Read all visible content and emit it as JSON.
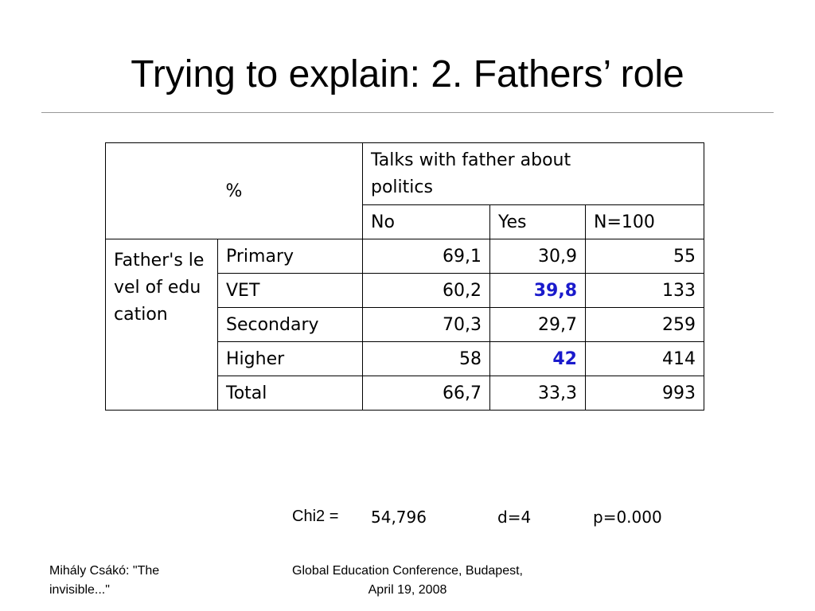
{
  "title": "Trying to explain: 2. Fathers’ role",
  "table": {
    "corner": "%",
    "header": "Talks with father about politics",
    "subheaders": [
      "No",
      "Yes",
      "N=100"
    ],
    "group_label": "Father's level of education",
    "rows": [
      {
        "label": "Primary",
        "no": "69,1",
        "yes": "30,9",
        "n": "55"
      },
      {
        "label": "VET",
        "no": "60,2",
        "yes": "39,8",
        "n": "133",
        "highlight": "yes"
      },
      {
        "label": "Secondary",
        "no": "70,3",
        "yes": "29,7",
        "n": "259"
      },
      {
        "label": "Higher",
        "no": "58",
        "yes": "42",
        "n": "414",
        "highlight": "yes"
      },
      {
        "label": "Total",
        "no": "66,7",
        "yes": "33,3",
        "n": "993"
      }
    ]
  },
  "stats": {
    "chi_label": "Chi2 =",
    "chi_value": "54,796",
    "df": "d=4",
    "p": "p=0.000"
  },
  "footer": {
    "left": "Mihály Csákó: \"The invisible...\"",
    "right": "Global Education Conference, Budapest, April 19, 2008"
  }
}
